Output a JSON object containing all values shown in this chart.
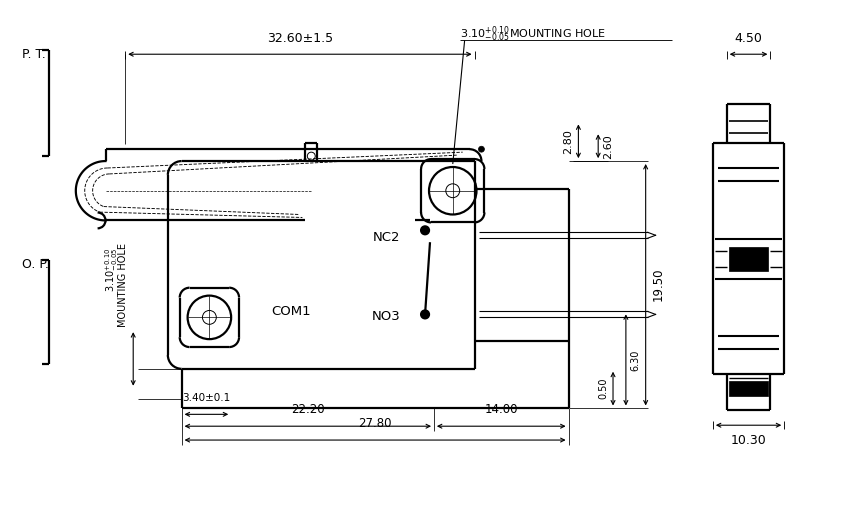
{
  "bg_color": "#ffffff",
  "fig_width": 8.6,
  "fig_height": 5.2,
  "dpi": 100,
  "labels": {
    "PT": "P. T.",
    "OP": "O. P.",
    "dim_3260": "32.60±1.5",
    "dim_450": "4.50",
    "dim_280": "2.80",
    "dim_260": "2.60",
    "dim_1950": "19.50",
    "dim_050": "0.50",
    "dim_630": "6.30",
    "dim_340": "3.40±0.1",
    "dim_2220": "22.20",
    "dim_1400": "14.00",
    "dim_2780": "27.80",
    "dim_1030": "10.30",
    "NC2": "NC2",
    "COM1": "COM1",
    "NO3": "NO3",
    "mounting_hole_top": "3.10$^{+0.10}_{-0.05}$MOUNTING HOLE",
    "mounting_hole_vert1": "3.10$^{+0.10}_{-0.05}$",
    "mounting_hole_vert2": "MOUNTING HOLE"
  }
}
